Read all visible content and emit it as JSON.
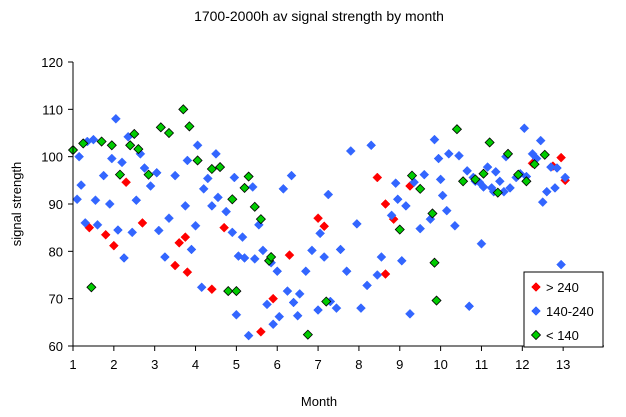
{
  "chart_data": {
    "type": "scatter",
    "title": "1700-2000h av signal strength by month",
    "xlabel": "Month",
    "ylabel": "signal strength",
    "xlim": [
      1,
      14
    ],
    "ylim": [
      60,
      120
    ],
    "xticks": [
      1,
      2,
      3,
      4,
      5,
      6,
      7,
      8,
      9,
      10,
      11,
      12,
      13
    ],
    "yticks": [
      60,
      70,
      80,
      90,
      100,
      110,
      120
    ],
    "grid": false,
    "marker": "diamond",
    "legend_position": "bottom-right",
    "series": [
      {
        "name": "> 240",
        "color": "#ff0000",
        "points": [
          [
            1.4,
            85
          ],
          [
            1.8,
            83.5
          ],
          [
            2.0,
            81.2
          ],
          [
            2.3,
            94.6
          ],
          [
            2.7,
            86
          ],
          [
            3.5,
            77
          ],
          [
            3.6,
            81.8
          ],
          [
            3.75,
            83
          ],
          [
            3.8,
            75.6
          ],
          [
            4.4,
            72
          ],
          [
            4.7,
            85
          ],
          [
            5.6,
            63
          ],
          [
            5.9,
            70
          ],
          [
            6.3,
            79.2
          ],
          [
            7.0,
            87
          ],
          [
            7.15,
            85.3
          ],
          [
            8.45,
            95.6
          ],
          [
            8.65,
            90
          ],
          [
            8.65,
            75.2
          ],
          [
            8.85,
            86.8
          ],
          [
            9.25,
            93.8
          ],
          [
            12.25,
            98.6
          ],
          [
            12.75,
            98
          ],
          [
            12.95,
            99.8
          ],
          [
            13.05,
            95
          ]
        ]
      },
      {
        "name": "140-240",
        "color": "#3366ff",
        "points": [
          [
            1.1,
            91
          ],
          [
            1.15,
            100
          ],
          [
            1.2,
            94
          ],
          [
            1.3,
            86
          ],
          [
            1.35,
            103.2
          ],
          [
            1.5,
            103.6
          ],
          [
            1.55,
            90.8
          ],
          [
            1.6,
            85.6
          ],
          [
            1.75,
            96
          ],
          [
            1.9,
            90
          ],
          [
            1.95,
            99.6
          ],
          [
            2.05,
            108
          ],
          [
            2.1,
            84.5
          ],
          [
            2.2,
            98.8
          ],
          [
            2.25,
            78.6
          ],
          [
            2.35,
            104.2
          ],
          [
            2.45,
            84
          ],
          [
            2.55,
            90.8
          ],
          [
            2.65,
            100.6
          ],
          [
            2.75,
            97.6
          ],
          [
            2.9,
            93.8
          ],
          [
            3.05,
            96.6
          ],
          [
            3.1,
            84.4
          ],
          [
            3.25,
            78.8
          ],
          [
            3.35,
            87
          ],
          [
            3.5,
            96
          ],
          [
            3.75,
            89.6
          ],
          [
            3.8,
            99.2
          ],
          [
            3.9,
            80.4
          ],
          [
            4.0,
            85.4
          ],
          [
            4.05,
            102.4
          ],
          [
            4.15,
            72.4
          ],
          [
            4.2,
            93.2
          ],
          [
            4.3,
            95.4
          ],
          [
            4.4,
            89.6
          ],
          [
            4.5,
            100.6
          ],
          [
            4.55,
            91.4
          ],
          [
            4.75,
            88.4
          ],
          [
            4.9,
            84
          ],
          [
            4.95,
            95.6
          ],
          [
            5.0,
            66.6
          ],
          [
            5.05,
            79
          ],
          [
            5.15,
            83
          ],
          [
            5.2,
            78.6
          ],
          [
            5.3,
            62.2
          ],
          [
            5.4,
            93.6
          ],
          [
            5.45,
            78.4
          ],
          [
            5.55,
            85.6
          ],
          [
            5.65,
            80.2
          ],
          [
            5.75,
            68.8
          ],
          [
            5.85,
            77.6
          ],
          [
            5.9,
            64.6
          ],
          [
            6.0,
            75.8
          ],
          [
            6.05,
            66.2
          ],
          [
            6.15,
            93.2
          ],
          [
            6.25,
            71.6
          ],
          [
            6.35,
            96
          ],
          [
            6.4,
            69.2
          ],
          [
            6.5,
            66.4
          ],
          [
            6.55,
            71
          ],
          [
            6.7,
            75.8
          ],
          [
            6.75,
            62.4
          ],
          [
            6.85,
            80.2
          ],
          [
            7.0,
            67.6
          ],
          [
            7.05,
            83.8
          ],
          [
            7.15,
            78.8
          ],
          [
            7.25,
            92
          ],
          [
            7.3,
            69.4
          ],
          [
            7.45,
            68
          ],
          [
            7.55,
            80.4
          ],
          [
            7.7,
            75.8
          ],
          [
            7.8,
            101.2
          ],
          [
            7.95,
            85.8
          ],
          [
            8.05,
            68
          ],
          [
            8.2,
            72.8
          ],
          [
            8.3,
            102.4
          ],
          [
            8.45,
            75
          ],
          [
            8.55,
            78.8
          ],
          [
            8.8,
            87.6
          ],
          [
            8.9,
            94.4
          ],
          [
            8.95,
            91
          ],
          [
            9.05,
            78
          ],
          [
            9.15,
            89.6
          ],
          [
            9.25,
            66.8
          ],
          [
            9.35,
            94.6
          ],
          [
            9.5,
            84.8
          ],
          [
            9.6,
            96.2
          ],
          [
            9.75,
            86.8
          ],
          [
            9.85,
            103.6
          ],
          [
            9.95,
            99.6
          ],
          [
            10.0,
            95.2
          ],
          [
            10.05,
            91.8
          ],
          [
            10.15,
            88.6
          ],
          [
            10.2,
            100.6
          ],
          [
            10.35,
            85.4
          ],
          [
            10.45,
            100.2
          ],
          [
            10.65,
            97
          ],
          [
            10.7,
            68.4
          ],
          [
            10.8,
            95.6
          ],
          [
            10.95,
            94.6
          ],
          [
            11.0,
            81.6
          ],
          [
            11.05,
            93.6
          ],
          [
            11.15,
            97.8
          ],
          [
            11.25,
            93.4
          ],
          [
            11.3,
            92.6
          ],
          [
            11.45,
            94.8
          ],
          [
            11.55,
            92.6
          ],
          [
            11.6,
            100
          ],
          [
            11.7,
            93.4
          ],
          [
            11.85,
            95.6
          ],
          [
            11.95,
            96.4
          ],
          [
            12.05,
            106
          ],
          [
            12.1,
            95.8
          ],
          [
            12.25,
            100.6
          ],
          [
            12.35,
            99.6
          ],
          [
            12.45,
            103.4
          ],
          [
            12.6,
            92.6
          ],
          [
            12.7,
            97.8
          ],
          [
            12.8,
            93.4
          ],
          [
            12.85,
            97.6
          ],
          [
            12.95,
            77.2
          ],
          [
            13.05,
            95.6
          ],
          [
            12.5,
            90.4
          ],
          [
            11.35,
            96.8
          ],
          [
            10.85,
            94.8
          ]
        ]
      },
      {
        "name": "< 140",
        "color": "#00cc00",
        "points": [
          [
            1.0,
            101.4
          ],
          [
            1.25,
            102.8
          ],
          [
            1.45,
            72.4
          ],
          [
            1.7,
            103.2
          ],
          [
            1.95,
            102.4
          ],
          [
            2.15,
            96.2
          ],
          [
            2.4,
            102.4
          ],
          [
            2.5,
            104.8
          ],
          [
            2.6,
            101.6
          ],
          [
            2.85,
            96.2
          ],
          [
            3.15,
            106.2
          ],
          [
            3.35,
            105
          ],
          [
            3.7,
            110
          ],
          [
            3.85,
            106.4
          ],
          [
            4.05,
            99.2
          ],
          [
            4.4,
            97.4
          ],
          [
            4.6,
            97.8
          ],
          [
            4.8,
            71.6
          ],
          [
            4.9,
            91
          ],
          [
            5.0,
            71.6
          ],
          [
            5.2,
            93.4
          ],
          [
            5.3,
            95.8
          ],
          [
            5.45,
            89.4
          ],
          [
            5.6,
            86.8
          ],
          [
            5.8,
            78
          ],
          [
            5.85,
            78.8
          ],
          [
            6.75,
            62.4
          ],
          [
            7.2,
            69.4
          ],
          [
            9.0,
            84.6
          ],
          [
            9.3,
            96
          ],
          [
            9.5,
            93.2
          ],
          [
            9.8,
            88
          ],
          [
            9.85,
            77.6
          ],
          [
            9.9,
            69.6
          ],
          [
            10.4,
            105.8
          ],
          [
            10.55,
            94.8
          ],
          [
            10.85,
            95.2
          ],
          [
            11.05,
            96.4
          ],
          [
            11.2,
            103
          ],
          [
            11.4,
            92.4
          ],
          [
            11.65,
            100.6
          ],
          [
            11.9,
            96.2
          ],
          [
            12.1,
            94.8
          ],
          [
            12.3,
            98.4
          ],
          [
            12.55,
            100.4
          ]
        ]
      }
    ]
  }
}
